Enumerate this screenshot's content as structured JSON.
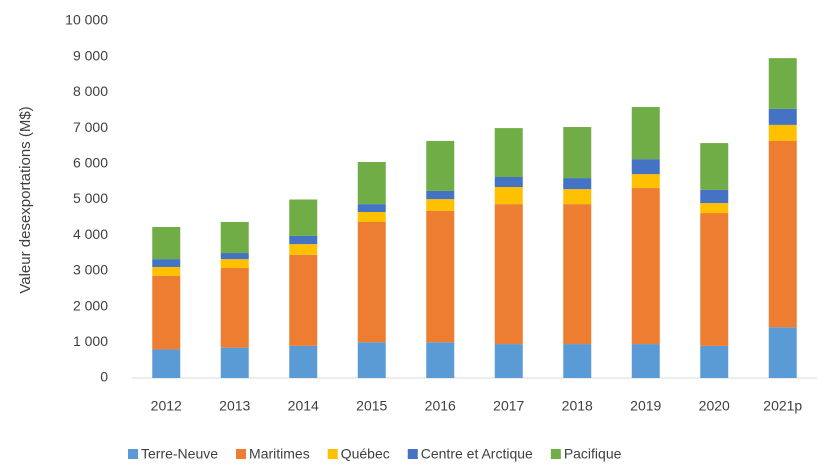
{
  "chart_data": {
    "type": "stacked_bar",
    "y_label": "Valeur desexportations (M$)",
    "categories": [
      "2012",
      "2013",
      "2014",
      "2015",
      "2016",
      "2017",
      "2018",
      "2019",
      "2020",
      "2021p"
    ],
    "series": [
      {
        "name": "Terre-Neuve",
        "color": "#5b9bd5",
        "values": [
          800,
          850,
          900,
          1000,
          1000,
          950,
          950,
          950,
          900,
          1420
        ]
      },
      {
        "name": "Maritimes",
        "color": "#ed7d31",
        "values": [
          2060,
          2230,
          2550,
          3370,
          3680,
          3920,
          3920,
          4370,
          3720,
          5220
        ]
      },
      {
        "name": "Québec",
        "color": "#ffc000",
        "values": [
          250,
          250,
          300,
          280,
          330,
          480,
          420,
          390,
          280,
          450
        ]
      },
      {
        "name": "Centre et Arctique",
        "color": "#4472c4",
        "values": [
          220,
          170,
          230,
          220,
          230,
          280,
          310,
          420,
          370,
          450
        ]
      },
      {
        "name": "Pacifique",
        "color": "#70ad47",
        "values": [
          900,
          870,
          1020,
          1180,
          1400,
          1370,
          1430,
          1460,
          1310,
          1420
        ]
      }
    ],
    "ylim": [
      0,
      10000
    ],
    "yticks": [
      0,
      {
        "value": 1000,
        "label": "1 000"
      },
      {
        "value": 2000,
        "label": "2 000"
      },
      {
        "value": 3000,
        "label": "3 000"
      },
      {
        "value": 4000,
        "label": "4 000"
      },
      {
        "value": 5000,
        "label": "5 000"
      },
      {
        "value": 6000,
        "label": "6 000"
      },
      {
        "value": 7000,
        "label": "7 000"
      },
      {
        "value": 8000,
        "label": "8 000"
      },
      {
        "value": 9000,
        "label": "9 000"
      },
      {
        "value": 10000,
        "label": "10 000"
      }
    ],
    "grid": false,
    "legend": "bottom"
  }
}
